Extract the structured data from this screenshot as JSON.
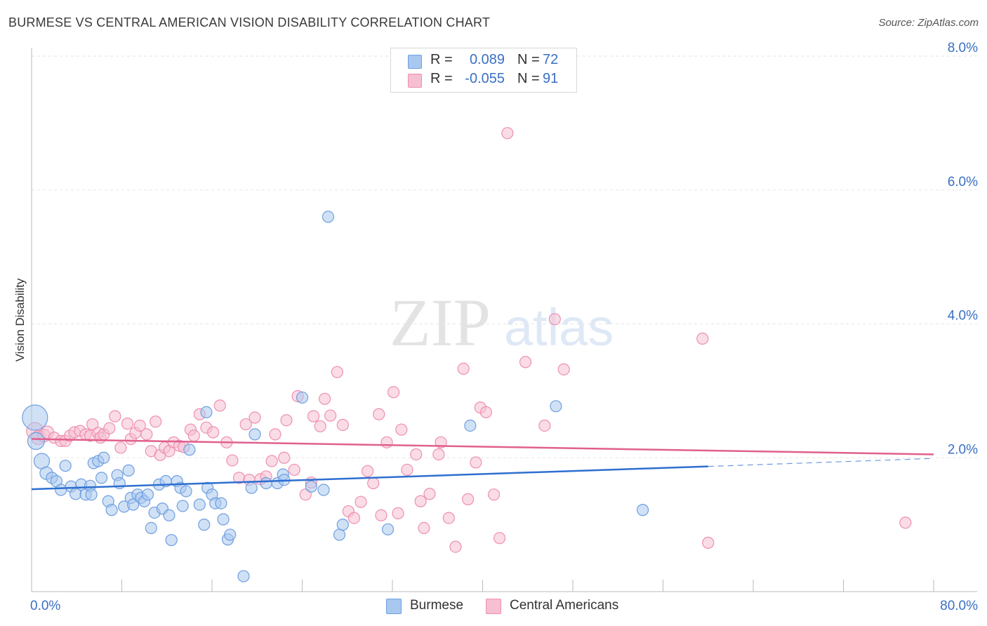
{
  "header": {
    "title": "BURMESE VS CENTRAL AMERICAN VISION DISABILITY CORRELATION CHART",
    "source": "Source: ZipAtlas.com"
  },
  "watermark": {
    "zip": "ZIP",
    "atlas": "atlas"
  },
  "legend_top": {
    "rows": [
      {
        "r_label": "R =",
        "r_value": "0.089",
        "n_label": "N =",
        "n_value": "72"
      },
      {
        "r_label": "R =",
        "r_value": "-0.055",
        "n_label": "N =",
        "n_value": "91"
      }
    ]
  },
  "legend_bottom": {
    "items": [
      "Burmese",
      "Central Americans"
    ]
  },
  "colors": {
    "blue_fill": "#a9c8ef",
    "blue_stroke": "#6f9fe0",
    "blue_line": "#2e6fd0",
    "pink_fill": "#f6bfd2",
    "pink_stroke": "#ee8fb0",
    "pink_line": "#e0608e",
    "tick_label": "#3a6fc4",
    "grid": "#e6e6e6"
  },
  "chart_data": {
    "type": "scatter",
    "title": "BURMESE VS CENTRAL AMERICAN VISION DISABILITY CORRELATION CHART",
    "xlabel": "",
    "ylabel": "Vision Disability",
    "xlim": [
      0,
      80
    ],
    "ylim": [
      0,
      8
    ],
    "x_tick_labels": [
      "0.0%",
      "80.0%"
    ],
    "y_ticks": [
      2,
      4,
      6,
      8
    ],
    "y_tick_labels": [
      "2.0%",
      "4.0%",
      "6.0%",
      "8.0%"
    ],
    "series": [
      {
        "name": "Burmese",
        "r": 0.089,
        "n": 72,
        "trend": {
          "x0": 0,
          "y0": 1.53,
          "x1": 60,
          "y1": 1.87,
          "dashed_to_x": 80,
          "dashed_to_y": 1.99
        },
        "points": [
          [
            0.3,
            2.6,
            18
          ],
          [
            0.4,
            2.25,
            12
          ],
          [
            0.9,
            1.95,
            11
          ],
          [
            1.3,
            1.77,
            9
          ],
          [
            1.8,
            1.7,
            8
          ],
          [
            2.2,
            1.65,
            8
          ],
          [
            2.6,
            1.52,
            8
          ],
          [
            3.0,
            1.88,
            8
          ],
          [
            3.5,
            1.57,
            8
          ],
          [
            3.9,
            1.46,
            8
          ],
          [
            4.4,
            1.6,
            8
          ],
          [
            4.8,
            1.45,
            8
          ],
          [
            5.2,
            1.58,
            8
          ],
          [
            5.3,
            1.45,
            8
          ],
          [
            5.5,
            1.92,
            8
          ],
          [
            5.9,
            1.95,
            8
          ],
          [
            6.2,
            1.7,
            8
          ],
          [
            6.4,
            2.0,
            8
          ],
          [
            6.8,
            1.35,
            8
          ],
          [
            7.1,
            1.22,
            8
          ],
          [
            7.6,
            1.74,
            8
          ],
          [
            7.8,
            1.62,
            8
          ],
          [
            8.2,
            1.27,
            8
          ],
          [
            8.6,
            1.81,
            8
          ],
          [
            8.8,
            1.4,
            8
          ],
          [
            9.0,
            1.3,
            8
          ],
          [
            9.4,
            1.45,
            8
          ],
          [
            9.7,
            1.4,
            8
          ],
          [
            10.0,
            1.35,
            8
          ],
          [
            10.3,
            1.45,
            8
          ],
          [
            10.6,
            0.95,
            8
          ],
          [
            10.9,
            1.18,
            8
          ],
          [
            11.3,
            1.6,
            8
          ],
          [
            11.6,
            1.24,
            8
          ],
          [
            11.9,
            1.65,
            8
          ],
          [
            12.2,
            1.14,
            8
          ],
          [
            12.4,
            0.77,
            8
          ],
          [
            12.9,
            1.65,
            8
          ],
          [
            13.2,
            1.55,
            8
          ],
          [
            13.4,
            1.28,
            8
          ],
          [
            13.7,
            1.5,
            8
          ],
          [
            14.0,
            2.12,
            8
          ],
          [
            14.9,
            1.3,
            8
          ],
          [
            15.3,
            1.0,
            8
          ],
          [
            15.5,
            2.68,
            8
          ],
          [
            15.6,
            1.55,
            8
          ],
          [
            16.0,
            1.45,
            8
          ],
          [
            16.3,
            1.32,
            8
          ],
          [
            16.8,
            1.32,
            8
          ],
          [
            17.0,
            1.08,
            8
          ],
          [
            17.4,
            0.78,
            8
          ],
          [
            17.6,
            0.85,
            8
          ],
          [
            18.8,
            0.23,
            8
          ],
          [
            19.5,
            1.55,
            8
          ],
          [
            19.8,
            2.35,
            8
          ],
          [
            20.8,
            1.62,
            8
          ],
          [
            21.8,
            1.62,
            8
          ],
          [
            22.3,
            1.75,
            8
          ],
          [
            22.4,
            1.67,
            8
          ],
          [
            24.0,
            2.9,
            8
          ],
          [
            24.8,
            1.57,
            8
          ],
          [
            25.9,
            1.52,
            8
          ],
          [
            26.3,
            5.6,
            8
          ],
          [
            27.3,
            0.85,
            8
          ],
          [
            27.6,
            1.0,
            8
          ],
          [
            31.6,
            0.93,
            8
          ],
          [
            38.9,
            2.48,
            8
          ],
          [
            46.5,
            2.77,
            8
          ],
          [
            54.2,
            1.22,
            8
          ]
        ]
      },
      {
        "name": "Central Americans",
        "r": -0.055,
        "n": 91,
        "trend": {
          "x0": 0,
          "y0": 2.28,
          "x1": 80,
          "y1": 2.05
        },
        "points": [
          [
            0.3,
            2.4,
            12
          ],
          [
            0.6,
            2.3,
            10
          ],
          [
            1.1,
            2.33,
            9
          ],
          [
            1.4,
            2.38,
            9
          ],
          [
            2.0,
            2.3,
            8
          ],
          [
            2.6,
            2.25,
            8
          ],
          [
            3.0,
            2.25,
            8
          ],
          [
            3.4,
            2.33,
            8
          ],
          [
            3.8,
            2.38,
            8
          ],
          [
            4.3,
            2.4,
            8
          ],
          [
            4.8,
            2.35,
            8
          ],
          [
            5.2,
            2.33,
            8
          ],
          [
            5.4,
            2.5,
            8
          ],
          [
            5.9,
            2.37,
            8
          ],
          [
            6.1,
            2.3,
            8
          ],
          [
            6.4,
            2.35,
            8
          ],
          [
            6.9,
            2.44,
            8
          ],
          [
            7.4,
            2.62,
            8
          ],
          [
            7.9,
            2.15,
            8
          ],
          [
            8.5,
            2.51,
            8
          ],
          [
            8.8,
            2.28,
            8
          ],
          [
            9.2,
            2.37,
            8
          ],
          [
            9.6,
            2.48,
            8
          ],
          [
            10.2,
            2.35,
            8
          ],
          [
            10.6,
            2.1,
            8
          ],
          [
            11.0,
            2.54,
            8
          ],
          [
            11.4,
            2.04,
            8
          ],
          [
            11.8,
            2.15,
            8
          ],
          [
            12.2,
            2.1,
            8
          ],
          [
            12.6,
            2.23,
            8
          ],
          [
            13.1,
            2.18,
            8
          ],
          [
            13.5,
            2.16,
            8
          ],
          [
            14.1,
            2.42,
            8
          ],
          [
            14.4,
            2.33,
            8
          ],
          [
            14.9,
            2.65,
            8
          ],
          [
            15.5,
            2.45,
            8
          ],
          [
            16.1,
            2.38,
            8
          ],
          [
            16.7,
            2.78,
            8
          ],
          [
            17.3,
            2.23,
            8
          ],
          [
            17.8,
            1.96,
            8
          ],
          [
            18.4,
            1.7,
            8
          ],
          [
            19.0,
            2.5,
            8
          ],
          [
            19.3,
            1.67,
            8
          ],
          [
            19.8,
            2.6,
            8
          ],
          [
            20.3,
            1.68,
            8
          ],
          [
            20.8,
            1.72,
            8
          ],
          [
            21.3,
            1.95,
            8
          ],
          [
            21.6,
            2.35,
            8
          ],
          [
            22.4,
            2.0,
            8
          ],
          [
            22.6,
            2.56,
            8
          ],
          [
            23.3,
            1.82,
            8
          ],
          [
            23.6,
            2.92,
            8
          ],
          [
            24.3,
            1.45,
            8
          ],
          [
            24.8,
            1.63,
            8
          ],
          [
            25.0,
            2.62,
            8
          ],
          [
            25.6,
            2.47,
            8
          ],
          [
            26.0,
            2.88,
            8
          ],
          [
            26.5,
            2.63,
            8
          ],
          [
            27.1,
            3.28,
            8
          ],
          [
            27.6,
            2.49,
            8
          ],
          [
            28.1,
            1.2,
            8
          ],
          [
            28.6,
            1.1,
            8
          ],
          [
            29.2,
            1.34,
            8
          ],
          [
            29.8,
            1.8,
            8
          ],
          [
            30.3,
            1.62,
            8
          ],
          [
            30.8,
            2.65,
            8
          ],
          [
            31.0,
            1.14,
            8
          ],
          [
            31.5,
            2.23,
            8
          ],
          [
            32.1,
            2.98,
            8
          ],
          [
            32.5,
            1.17,
            8
          ],
          [
            32.8,
            2.42,
            8
          ],
          [
            33.3,
            1.82,
            8
          ],
          [
            34.1,
            2.05,
            8
          ],
          [
            34.5,
            1.35,
            8
          ],
          [
            34.8,
            0.95,
            8
          ],
          [
            35.3,
            1.46,
            8
          ],
          [
            36.1,
            2.05,
            8
          ],
          [
            36.3,
            2.23,
            8
          ],
          [
            37.0,
            1.1,
            8
          ],
          [
            37.6,
            0.67,
            8
          ],
          [
            38.3,
            3.33,
            8
          ],
          [
            38.7,
            1.38,
            8
          ],
          [
            39.4,
            1.93,
            8
          ],
          [
            39.8,
            2.75,
            8
          ],
          [
            40.3,
            2.68,
            8
          ],
          [
            41.0,
            1.45,
            8
          ],
          [
            41.5,
            0.8,
            8
          ],
          [
            42.2,
            6.85,
            8
          ],
          [
            43.8,
            3.43,
            8
          ],
          [
            45.5,
            2.48,
            8
          ],
          [
            46.4,
            4.07,
            8
          ],
          [
            47.2,
            3.32,
            8
          ],
          [
            59.5,
            3.78,
            8
          ],
          [
            60.0,
            0.73,
            8
          ],
          [
            77.5,
            1.03,
            8
          ]
        ]
      }
    ]
  }
}
